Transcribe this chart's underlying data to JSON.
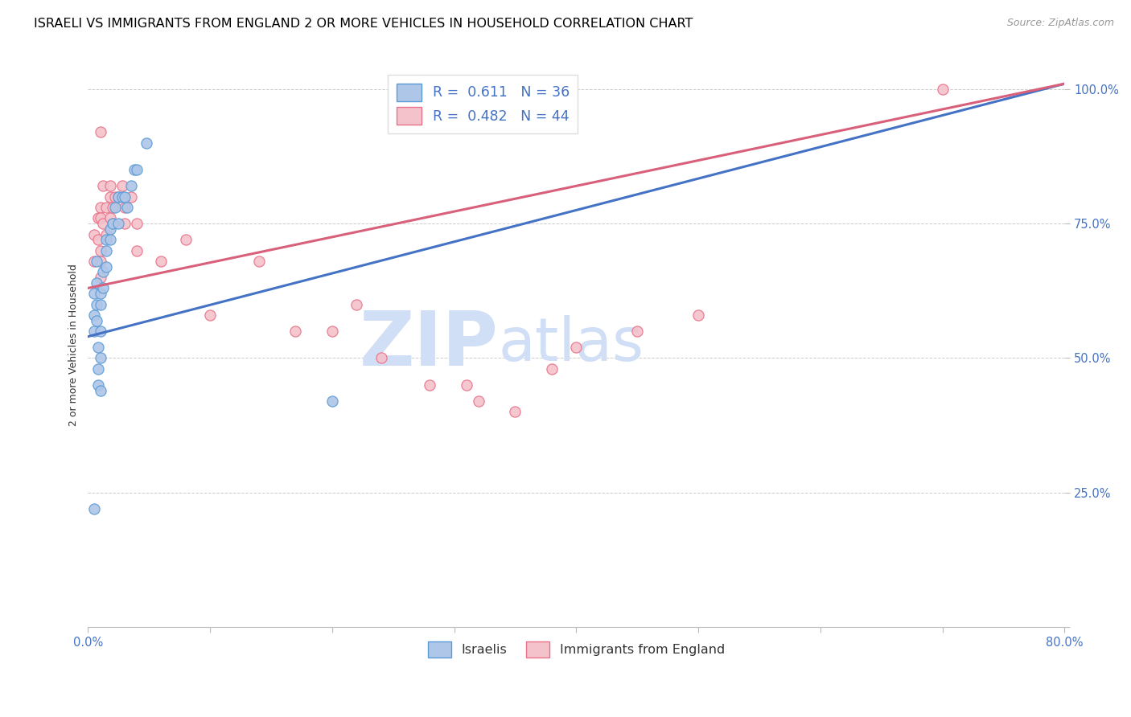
{
  "title": "ISRAELI VS IMMIGRANTS FROM ENGLAND 2 OR MORE VEHICLES IN HOUSEHOLD CORRELATION CHART",
  "source": "Source: ZipAtlas.com",
  "ylabel": "2 or more Vehicles in Household",
  "xmin": 0.0,
  "xmax": 0.8,
  "ymin": 0.0,
  "ymax": 1.05,
  "yticks": [
    0.0,
    0.25,
    0.5,
    0.75,
    1.0
  ],
  "ytick_labels": [
    "",
    "25.0%",
    "50.0%",
    "75.0%",
    "100.0%"
  ],
  "xticks": [
    0.0,
    0.1,
    0.2,
    0.3,
    0.4,
    0.5,
    0.6,
    0.7,
    0.8
  ],
  "xtick_labels": [
    "0.0%",
    "",
    "",
    "",
    "",
    "",
    "",
    "",
    "80.0%"
  ],
  "blue_R": 0.611,
  "blue_N": 36,
  "pink_R": 0.482,
  "pink_N": 44,
  "blue_line_x0": 0.0,
  "blue_line_y0": 0.54,
  "blue_line_x1": 0.8,
  "blue_line_y1": 1.01,
  "pink_line_x0": 0.0,
  "pink_line_y0": 0.63,
  "pink_line_x1": 0.8,
  "pink_line_y1": 1.01,
  "israelis_x": [
    0.005,
    0.005,
    0.005,
    0.007,
    0.007,
    0.007,
    0.007,
    0.008,
    0.008,
    0.008,
    0.01,
    0.01,
    0.01,
    0.01,
    0.01,
    0.012,
    0.012,
    0.015,
    0.015,
    0.015,
    0.018,
    0.018,
    0.02,
    0.022,
    0.025,
    0.025,
    0.028,
    0.03,
    0.032,
    0.035,
    0.038,
    0.04,
    0.048,
    0.005,
    0.2,
    0.26
  ],
  "israelis_y": [
    0.58,
    0.62,
    0.55,
    0.68,
    0.64,
    0.6,
    0.57,
    0.52,
    0.48,
    0.45,
    0.62,
    0.6,
    0.55,
    0.5,
    0.44,
    0.66,
    0.63,
    0.72,
    0.7,
    0.67,
    0.74,
    0.72,
    0.75,
    0.78,
    0.8,
    0.75,
    0.8,
    0.8,
    0.78,
    0.82,
    0.85,
    0.85,
    0.9,
    0.22,
    0.42,
    0.97
  ],
  "england_x": [
    0.005,
    0.005,
    0.008,
    0.008,
    0.01,
    0.01,
    0.01,
    0.01,
    0.01,
    0.012,
    0.012,
    0.015,
    0.015,
    0.018,
    0.018,
    0.018,
    0.02,
    0.02,
    0.022,
    0.025,
    0.028,
    0.03,
    0.03,
    0.035,
    0.04,
    0.04,
    0.06,
    0.08,
    0.1,
    0.14,
    0.17,
    0.2,
    0.22,
    0.24,
    0.28,
    0.31,
    0.32,
    0.35,
    0.38,
    0.4,
    0.45,
    0.5,
    0.7,
    0.01
  ],
  "england_y": [
    0.68,
    0.73,
    0.76,
    0.72,
    0.78,
    0.76,
    0.7,
    0.68,
    0.65,
    0.82,
    0.75,
    0.78,
    0.73,
    0.82,
    0.8,
    0.76,
    0.78,
    0.75,
    0.8,
    0.8,
    0.82,
    0.78,
    0.75,
    0.8,
    0.75,
    0.7,
    0.68,
    0.72,
    0.58,
    0.68,
    0.55,
    0.55,
    0.6,
    0.5,
    0.45,
    0.45,
    0.42,
    0.4,
    0.48,
    0.52,
    0.55,
    0.58,
    1.0,
    0.92
  ],
  "blue_color": "#aec6e8",
  "blue_edge_color": "#5b9bd5",
  "pink_color": "#f4c2cb",
  "pink_edge_color": "#e8728a",
  "blue_line_color": "#4472c4",
  "pink_line_color": "#d9607a",
  "watermark_zip": "ZIP",
  "watermark_atlas": "atlas",
  "watermark_color": "#d0dff5",
  "legend_blue_label": "Israelis",
  "legend_pink_label": "Immigrants from England",
  "grid_color": "#cccccc",
  "title_fontsize": 11.5,
  "axis_label_fontsize": 9,
  "tick_label_color": "#4472c4"
}
